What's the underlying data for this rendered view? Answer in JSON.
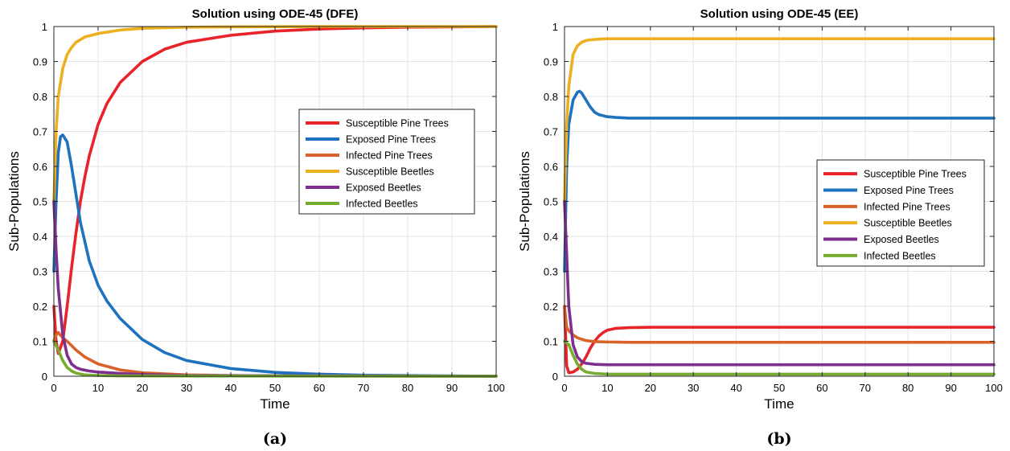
{
  "colors": {
    "susceptible_pine": "#e8232a",
    "exposed_pine": "#1f72bd",
    "infected_pine": "#d9622a",
    "susceptible_beetles": "#edb120",
    "exposed_beetles": "#7e2f8e",
    "infected_beetles": "#77ac30"
  },
  "chart_data": [
    {
      "type": "line",
      "panel_label": "(a)",
      "title": "Solution using ODE-45 (DFE)",
      "xlabel": "Time",
      "ylabel": "Sub-Populations",
      "xlim": [
        0,
        100
      ],
      "ylim": [
        0,
        1
      ],
      "xticks": [
        "0",
        "10",
        "20",
        "30",
        "40",
        "50",
        "60",
        "70",
        "80",
        "90",
        "100"
      ],
      "yticks": [
        "0",
        "0.1",
        "0.2",
        "0.3",
        "0.4",
        "0.5",
        "0.6",
        "0.7",
        "0.8",
        "0.9",
        "1"
      ],
      "grid": true,
      "legend_position": "center-right",
      "series": [
        {
          "name": "Susceptible Pine Trees",
          "color_key": "susceptible_pine",
          "x": [
            0,
            0.5,
            1,
            2,
            3,
            4,
            5,
            6,
            7,
            8,
            10,
            12,
            15,
            20,
            25,
            30,
            40,
            50,
            60,
            70,
            80,
            90,
            100
          ],
          "y": [
            0.2,
            0.1,
            0.065,
            0.1,
            0.2,
            0.31,
            0.41,
            0.5,
            0.57,
            0.63,
            0.72,
            0.78,
            0.84,
            0.9,
            0.935,
            0.955,
            0.975,
            0.987,
            0.993,
            0.996,
            0.998,
            0.999,
            1.0
          ]
        },
        {
          "name": "Exposed Pine Trees",
          "color_key": "exposed_pine",
          "x": [
            0,
            0.5,
            1,
            1.5,
            2,
            3,
            4,
            5,
            6,
            8,
            10,
            12,
            15,
            20,
            25,
            30,
            40,
            50,
            60,
            70,
            80,
            90,
            100
          ],
          "y": [
            0.3,
            0.5,
            0.64,
            0.685,
            0.69,
            0.67,
            0.6,
            0.52,
            0.44,
            0.33,
            0.26,
            0.215,
            0.165,
            0.105,
            0.068,
            0.045,
            0.022,
            0.011,
            0.006,
            0.003,
            0.002,
            0.001,
            0.0
          ]
        },
        {
          "name": "Infected Pine Trees",
          "color_key": "infected_pine",
          "x": [
            0,
            0.5,
            1,
            2,
            3,
            5,
            7,
            10,
            15,
            20,
            30,
            40,
            50,
            100
          ],
          "y": [
            0.1,
            0.118,
            0.125,
            0.11,
            0.1,
            0.075,
            0.055,
            0.035,
            0.018,
            0.01,
            0.004,
            0.002,
            0.001,
            0.0
          ]
        },
        {
          "name": "Susceptible Beetles",
          "color_key": "susceptible_beetles",
          "x": [
            0,
            0.5,
            1,
            2,
            3,
            4,
            5,
            7,
            10,
            15,
            20,
            30,
            40,
            60,
            100
          ],
          "y": [
            0.5,
            0.7,
            0.8,
            0.88,
            0.92,
            0.94,
            0.955,
            0.97,
            0.98,
            0.99,
            0.995,
            0.998,
            0.999,
            1.0,
            1.0
          ]
        },
        {
          "name": "Exposed Beetles",
          "color_key": "exposed_beetles",
          "x": [
            0,
            0.5,
            1,
            2,
            3,
            4,
            5,
            6,
            8,
            10,
            15,
            20,
            30,
            100
          ],
          "y": [
            0.5,
            0.36,
            0.25,
            0.12,
            0.06,
            0.035,
            0.025,
            0.02,
            0.015,
            0.012,
            0.008,
            0.005,
            0.002,
            0.0
          ]
        },
        {
          "name": "Infected Beetles",
          "color_key": "infected_beetles",
          "x": [
            0,
            1,
            2,
            3,
            4,
            5,
            7,
            10,
            15,
            100
          ],
          "y": [
            0.1,
            0.075,
            0.045,
            0.025,
            0.015,
            0.009,
            0.004,
            0.002,
            0.001,
            0.0
          ]
        }
      ]
    },
    {
      "type": "line",
      "panel_label": "(b)",
      "title": "Solution using ODE-45 (EE)",
      "xlabel": "Time",
      "ylabel": "Sub-Populations",
      "xlim": [
        0,
        100
      ],
      "ylim": [
        0,
        1
      ],
      "xticks": [
        "0",
        "10",
        "20",
        "30",
        "40",
        "50",
        "60",
        "70",
        "80",
        "90",
        "100"
      ],
      "yticks": [
        "0",
        "0.1",
        "0.2",
        "0.3",
        "0.4",
        "0.5",
        "0.6",
        "0.7",
        "0.8",
        "0.9",
        "1"
      ],
      "grid": true,
      "legend_position": "center-right",
      "series": [
        {
          "name": "Susceptible Pine Trees",
          "color_key": "susceptible_pine",
          "x": [
            0,
            0.5,
            1,
            2,
            3,
            4,
            5,
            6,
            7,
            8,
            9,
            10,
            12,
            15,
            20,
            100
          ],
          "y": [
            0.2,
            0.03,
            0.01,
            0.012,
            0.02,
            0.035,
            0.055,
            0.08,
            0.1,
            0.115,
            0.125,
            0.132,
            0.137,
            0.139,
            0.14,
            0.14
          ]
        },
        {
          "name": "Exposed Pine Trees",
          "color_key": "exposed_pine",
          "x": [
            0,
            0.5,
            1,
            2,
            3,
            3.5,
            4,
            5,
            6,
            7,
            8,
            10,
            12,
            15,
            20,
            30,
            100
          ],
          "y": [
            0.3,
            0.6,
            0.72,
            0.79,
            0.812,
            0.815,
            0.81,
            0.79,
            0.77,
            0.755,
            0.748,
            0.742,
            0.74,
            0.738,
            0.738,
            0.738,
            0.738
          ]
        },
        {
          "name": "Infected Pine Trees",
          "color_key": "infected_pine",
          "x": [
            0,
            0.5,
            1,
            2,
            3,
            5,
            7,
            10,
            15,
            20,
            100
          ],
          "y": [
            0.2,
            0.14,
            0.13,
            0.118,
            0.11,
            0.102,
            0.099,
            0.098,
            0.097,
            0.097,
            0.097
          ]
        },
        {
          "name": "Susceptible Beetles",
          "color_key": "susceptible_beetles",
          "x": [
            0,
            0.5,
            1,
            2,
            3,
            4,
            5,
            6,
            8,
            10,
            15,
            100
          ],
          "y": [
            0.5,
            0.72,
            0.83,
            0.92,
            0.945,
            0.955,
            0.96,
            0.962,
            0.964,
            0.965,
            0.965,
            0.965
          ]
        },
        {
          "name": "Exposed Beetles",
          "color_key": "exposed_beetles",
          "x": [
            0,
            0.5,
            1,
            2,
            3,
            4,
            5,
            7,
            10,
            15,
            100
          ],
          "y": [
            0.5,
            0.35,
            0.2,
            0.09,
            0.055,
            0.042,
            0.037,
            0.034,
            0.033,
            0.033,
            0.033
          ]
        },
        {
          "name": "Infected Beetles",
          "color_key": "infected_beetles",
          "x": [
            0,
            1,
            2,
            3,
            4,
            5,
            7,
            10,
            100
          ],
          "y": [
            0.1,
            0.09,
            0.06,
            0.035,
            0.02,
            0.012,
            0.008,
            0.006,
            0.006
          ]
        }
      ]
    }
  ]
}
